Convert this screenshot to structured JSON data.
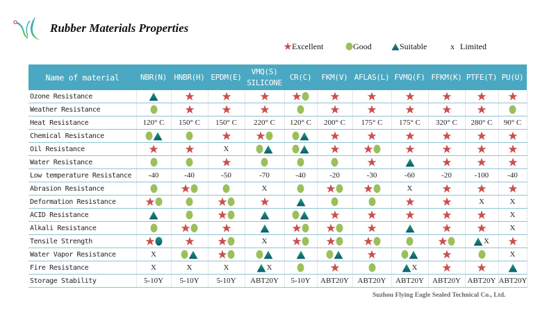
{
  "header": {
    "title": "Rubber Materials Properties"
  },
  "legend": [
    {
      "symbol": "star",
      "label": "Excellent"
    },
    {
      "symbol": "circle",
      "label": "Good"
    },
    {
      "symbol": "triangle",
      "label": "Suitable"
    },
    {
      "symbol": "x",
      "label": "Limited"
    }
  ],
  "colors": {
    "header_bg": "#4aa8c2",
    "star": "#c9504e",
    "circle": "#9bbf5a",
    "triangle_top": "#1a9a78",
    "triangle_bottom": "#0d5a6e",
    "row_line": "#8fc3d4"
  },
  "table": {
    "header_name": "Name of material",
    "columns": [
      {
        "label": "NBR(N)"
      },
      {
        "label": "HNBR(H)"
      },
      {
        "label": "EPDM(E)"
      },
      {
        "label": "VMQ(S)",
        "sub": "SILICONE"
      },
      {
        "label": "CR(C)"
      },
      {
        "label": "FKM(V)"
      },
      {
        "label": "AFLAS(L)"
      },
      {
        "label": "FVMQ(F)"
      },
      {
        "label": "FFKM(K)"
      },
      {
        "label": "PTFE(T)"
      },
      {
        "label": "PU(U)"
      }
    ],
    "rows": [
      {
        "name": "Ozone Resistance",
        "cells": [
          [
            "triangle"
          ],
          [
            "star"
          ],
          [
            "star"
          ],
          [
            "star"
          ],
          [
            "star",
            "circle"
          ],
          [
            "star"
          ],
          [
            "star"
          ],
          [
            "star"
          ],
          [
            "star"
          ],
          [
            "star"
          ],
          [
            "star"
          ]
        ]
      },
      {
        "name": "Weather Resistance",
        "cells": [
          [
            "circle"
          ],
          [
            "star"
          ],
          [
            "star"
          ],
          [
            "star"
          ],
          [
            "circle"
          ],
          [
            "star"
          ],
          [
            "star"
          ],
          [
            "star"
          ],
          [
            "star"
          ],
          [
            "star"
          ],
          [
            "circle"
          ]
        ]
      },
      {
        "name": "Heat Resistance",
        "text": [
          "120° C",
          "150° C",
          "150° C",
          "220° C",
          "120° C",
          "200° C",
          "175° C",
          "175° C",
          "320° C",
          "280° C",
          "90° C"
        ]
      },
      {
        "name": "Chemical Resistance",
        "cells": [
          [
            "circle",
            "triangle"
          ],
          [
            "circle"
          ],
          [
            "star"
          ],
          [
            "star",
            "circle"
          ],
          [
            "circle",
            "triangle"
          ],
          [
            "star"
          ],
          [
            "star"
          ],
          [
            "star"
          ],
          [
            "star"
          ],
          [
            "star"
          ],
          [
            "star"
          ]
        ]
      },
      {
        "name": "Oil Resistance",
        "cells": [
          [
            "star"
          ],
          [
            "star"
          ],
          [
            "x"
          ],
          [
            "circle",
            "triangle"
          ],
          [
            "circle",
            "triangle"
          ],
          [
            "star"
          ],
          [
            "star",
            "circle"
          ],
          [
            "star"
          ],
          [
            "star"
          ],
          [
            "star"
          ],
          [
            "star"
          ]
        ]
      },
      {
        "name": "Water Resistance",
        "cells": [
          [
            "circle"
          ],
          [
            "circle"
          ],
          [
            "star"
          ],
          [
            "circle"
          ],
          [
            "circle"
          ],
          [
            "circle"
          ],
          [
            "star"
          ],
          [
            "triangle"
          ],
          [
            "star"
          ],
          [
            "star"
          ],
          [
            "star"
          ]
        ]
      },
      {
        "name": "Low temperature Resistance",
        "text": [
          "-40",
          "-40",
          "-50",
          "-70",
          "-40",
          "-20",
          "-30",
          "-60",
          "-20",
          "-100",
          "-40"
        ]
      },
      {
        "name": "Abrasion Resistance",
        "cells": [
          [
            "circle"
          ],
          [
            "star",
            "circle"
          ],
          [
            "circle"
          ],
          [
            "x"
          ],
          [
            "circle"
          ],
          [
            "star",
            "circle"
          ],
          [
            "star",
            "circle"
          ],
          [
            "x"
          ],
          [
            "star"
          ],
          [
            "star"
          ],
          [
            "star"
          ]
        ]
      },
      {
        "name": "Deformation Resistance",
        "cells": [
          [
            "star",
            "circle"
          ],
          [
            "circle"
          ],
          [
            "star",
            "circle"
          ],
          [
            "star"
          ],
          [
            "triangle"
          ],
          [
            "circle"
          ],
          [
            "circle"
          ],
          [
            "star"
          ],
          [
            "star"
          ],
          [
            "x"
          ],
          [
            "x"
          ]
        ]
      },
      {
        "name": "ACID Resistance",
        "cells": [
          [
            "triangle"
          ],
          [
            "circle"
          ],
          [
            "star",
            "circle"
          ],
          [
            "triangle"
          ],
          [
            "circle",
            "triangle"
          ],
          [
            "star"
          ],
          [
            "star"
          ],
          [
            "star"
          ],
          [
            "star"
          ],
          [
            "star"
          ],
          [
            "x"
          ]
        ]
      },
      {
        "name": "Alkali Resistance",
        "cells": [
          [
            "circle"
          ],
          [
            "star",
            "circle"
          ],
          [
            "star"
          ],
          [
            "triangle"
          ],
          [
            "star",
            "circle"
          ],
          [
            "star",
            "circle"
          ],
          [
            "star"
          ],
          [
            "triangle"
          ],
          [
            "star"
          ],
          [
            "star"
          ],
          [
            "x"
          ]
        ]
      },
      {
        "name": "Tensile Strength",
        "cells": [
          [
            "star",
            "teal-circle"
          ],
          [
            "star"
          ],
          [
            "star",
            "circle"
          ],
          [
            "x"
          ],
          [
            "star",
            "circle"
          ],
          [
            "star",
            "circle"
          ],
          [
            "star",
            "circle"
          ],
          [
            "circle"
          ],
          [
            "star",
            "circle"
          ],
          [
            "triangle",
            "x"
          ],
          [
            "star"
          ]
        ]
      },
      {
        "name": "Water Vapor Resistance",
        "cells": [
          [
            "x"
          ],
          [
            "circle",
            "triangle"
          ],
          [
            "star",
            "circle"
          ],
          [
            "circle",
            "triangle"
          ],
          [
            "triangle"
          ],
          [
            "circle",
            "triangle"
          ],
          [
            "star"
          ],
          [
            "circle",
            "triangle"
          ],
          [
            "star"
          ],
          [
            "circle"
          ],
          [
            "x"
          ]
        ]
      },
      {
        "name": "Fire Resistance",
        "cells": [
          [
            "x"
          ],
          [
            "x"
          ],
          [
            "x"
          ],
          [
            "triangle",
            "x"
          ],
          [
            "circle"
          ],
          [
            "star"
          ],
          [
            "circle"
          ],
          [
            "triangle",
            "x"
          ],
          [
            "star"
          ],
          [
            "star"
          ],
          [
            "triangle"
          ]
        ]
      },
      {
        "name": "Storage Stability",
        "text": [
          "5-10Y",
          "5-10Y",
          "5-10Y",
          "ABT20Y",
          "5-10Y",
          "ABT20Y",
          "ABT20Y",
          "ABT20Y",
          "ABT20Y",
          "ABT20Y",
          "ABT20Y"
        ]
      }
    ]
  },
  "footer": {
    "company": "Suzhou Flying Eagle Sealed Technical Co., Ltd."
  }
}
